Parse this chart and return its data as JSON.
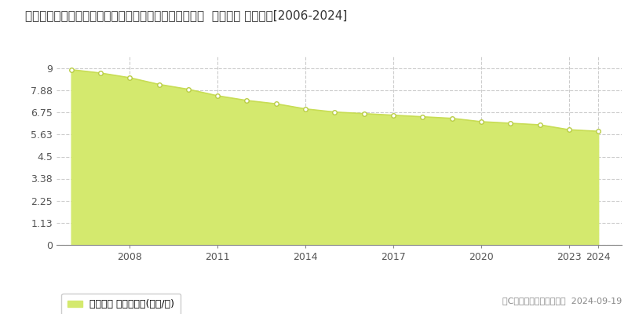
{
  "title": "埼玉県比企郡ときがわ町大字玉川字伊勢台１１６９番１  基準地価 地価推移[2006-2024]",
  "years": [
    2006,
    2007,
    2008,
    2009,
    2010,
    2011,
    2012,
    2013,
    2014,
    2015,
    2016,
    2017,
    2018,
    2019,
    2020,
    2021,
    2022,
    2023,
    2024
  ],
  "values": [
    8.93,
    8.76,
    8.52,
    8.18,
    7.93,
    7.6,
    7.36,
    7.19,
    6.93,
    6.77,
    6.69,
    6.61,
    6.53,
    6.45,
    6.28,
    6.2,
    6.12,
    5.87,
    5.79
  ],
  "yticks": [
    0,
    1.13,
    2.25,
    3.38,
    4.5,
    5.63,
    6.75,
    7.88,
    9
  ],
  "ylim": [
    0,
    9.6
  ],
  "xlim": [
    2005.5,
    2024.8
  ],
  "xticks": [
    2008,
    2011,
    2014,
    2017,
    2020,
    2023,
    2024
  ],
  "fill_color": "#d4e96e",
  "line_color": "#c8dd55",
  "marker_color": "#ffffff",
  "marker_edge_color": "#b8cc44",
  "grid_color": "#cccccc",
  "background_color": "#ffffff",
  "legend_label": "基準地価 平均坪単価(万円/坪)",
  "copyright_text": "（C）土地価格ドットコム  2024-09-19",
  "title_fontsize": 11,
  "axis_fontsize": 9,
  "legend_fontsize": 9
}
